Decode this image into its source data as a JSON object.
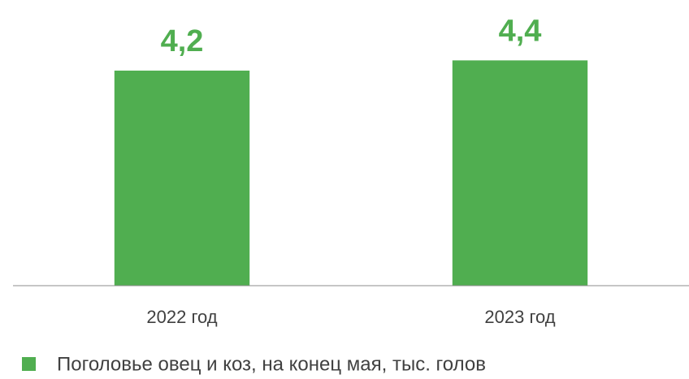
{
  "chart_data": {
    "type": "bar",
    "categories": [
      "2022 год",
      "2023 год"
    ],
    "series": [
      {
        "name": "Поголовье овец и коз, на конец мая, тыс. голов",
        "color": "#50ae50",
        "values": [
          4.2,
          4.4
        ],
        "value_labels": [
          "4,2",
          "4,4"
        ]
      }
    ],
    "ylim": [
      0,
      5.5
    ],
    "grid": false
  }
}
